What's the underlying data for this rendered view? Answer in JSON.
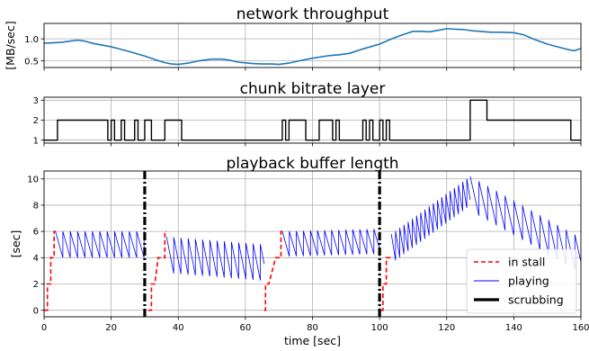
{
  "chart_data": [
    {
      "type": "line",
      "title": "network throughput",
      "xlabel": "",
      "ylabel": "[MB/sec]",
      "xlim": [
        0,
        160
      ],
      "ylim": [
        0.35,
        1.35
      ],
      "yticks": [
        0.5,
        1.0
      ],
      "ytick_labels": [
        "0.5",
        "1.0"
      ],
      "grid": true,
      "series": [
        {
          "color": "#1f77b4",
          "x": [
            0,
            5,
            8,
            10,
            12,
            15,
            20,
            25,
            30,
            33,
            36,
            38,
            40,
            43,
            46,
            50,
            53,
            55,
            58,
            62,
            65,
            68,
            70,
            73,
            76,
            80,
            85,
            88,
            91,
            95,
            100,
            103,
            106,
            108,
            110,
            112,
            115,
            118,
            120,
            122,
            125,
            128,
            130,
            133,
            136,
            140,
            143,
            146,
            150,
            153,
            156,
            158,
            160
          ],
          "y": [
            0.9,
            0.92,
            0.95,
            0.97,
            0.95,
            0.89,
            0.82,
            0.72,
            0.61,
            0.53,
            0.46,
            0.43,
            0.42,
            0.45,
            0.5,
            0.54,
            0.54,
            0.52,
            0.47,
            0.44,
            0.43,
            0.43,
            0.42,
            0.45,
            0.5,
            0.56,
            0.62,
            0.64,
            0.67,
            0.77,
            0.88,
            0.98,
            1.07,
            1.12,
            1.17,
            1.17,
            1.16,
            1.2,
            1.23,
            1.22,
            1.21,
            1.18,
            1.17,
            1.15,
            1.15,
            1.14,
            1.09,
            0.99,
            0.88,
            0.82,
            0.76,
            0.73,
            0.78
          ]
        }
      ]
    },
    {
      "type": "line",
      "title": "chunk bitrate layer",
      "xlabel": "",
      "ylabel": "",
      "xlim": [
        0,
        160
      ],
      "ylim": [
        0.85,
        3.15
      ],
      "yticks": [
        1,
        2,
        3
      ],
      "ytick_labels": [
        "1",
        "2",
        "3"
      ],
      "grid": true,
      "series": [
        {
          "color": "#000000",
          "step": "post",
          "x": [
            0,
            4,
            19,
            20,
            21,
            23,
            24,
            27,
            28,
            30,
            32,
            36,
            41,
            71,
            72,
            73,
            78,
            82,
            86,
            87,
            88,
            95,
            96,
            97,
            98,
            100,
            101,
            102,
            103,
            127,
            132,
            157,
            160
          ],
          "y": [
            1,
            2,
            1,
            2,
            1,
            2,
            1,
            2,
            1,
            2,
            1,
            2,
            1,
            2,
            1,
            2,
            1,
            2,
            1,
            2,
            1,
            2,
            1,
            2,
            1,
            2,
            1,
            2,
            1,
            3,
            2,
            1,
            1
          ]
        }
      ]
    },
    {
      "type": "line",
      "title": "playback buffer length",
      "xlabel": "time [sec]",
      "ylabel": "[sec]",
      "xlim": [
        0,
        160
      ],
      "ylim": [
        -0.5,
        10.6
      ],
      "xticks": [
        0,
        20,
        40,
        60,
        80,
        100,
        120,
        140,
        160
      ],
      "xtick_labels": [
        "0",
        "20",
        "40",
        "60",
        "80",
        "100",
        "120",
        "140",
        "160"
      ],
      "yticks": [
        0,
        2,
        4,
        6,
        8,
        10
      ],
      "ytick_labels": [
        "0",
        "2",
        "4",
        "6",
        "8",
        "10"
      ],
      "grid": true,
      "legend": "lower-right",
      "series": [
        {
          "name": "in stall",
          "color": "#ff0000",
          "style": "dashed",
          "segments": [
            {
              "x": [
                0,
                1,
                1,
                2,
                2,
                3,
                3,
                3.4
              ],
              "y": [
                0,
                0,
                2,
                2,
                4,
                4,
                6,
                6
              ]
            },
            {
              "x": [
                31,
                32,
                32,
                33,
                33,
                34,
                34,
                36,
                36,
                36.5
              ],
              "y": [
                0,
                0,
                2,
                2,
                2,
                4,
                4,
                4,
                6,
                6
              ]
            },
            {
              "x": [
                65.6,
                66,
                66,
                67,
                67,
                69,
                69,
                70.6,
                70.6,
                71
              ],
              "y": [
                0,
                0,
                2,
                2,
                2,
                4,
                4,
                4,
                6,
                6
              ]
            },
            {
              "x": [
                100.4,
                101,
                101,
                102,
                102,
                103,
                103,
                103.5
              ],
              "y": [
                0,
                0,
                2,
                2,
                4,
                4,
                4,
                4
              ]
            }
          ]
        },
        {
          "name": "playing",
          "color": "#0000ff",
          "style": "solid",
          "sawtooth": [
            {
              "t0": 3.4,
              "t1": 30,
              "b0": 6.0,
              "b1": 6.0,
              "drop": 2.0,
              "period": 2.2
            },
            {
              "t0": 36.5,
              "t1": 65.6,
              "b0": 5.6,
              "b1": 5.0,
              "drop": 2.8,
              "period": 2.15
            },
            {
              "t0": 71,
              "t1": 100,
              "b0": 6.0,
              "b1": 6.2,
              "drop": 1.9,
              "period": 2.1
            },
            {
              "t0": 103.5,
              "t1": 127,
              "b0": 5.8,
              "b1": 10.2,
              "drop": 2.0,
              "period": 1.25
            },
            {
              "t0": 127,
              "t1": 160,
              "b0": 10.2,
              "b1": 5.5,
              "drop": 3.0,
              "period": 2.6
            }
          ]
        },
        {
          "name": "scrubbing",
          "color": "#000000",
          "style": "dashdot",
          "vlines": [
            30,
            100
          ],
          "ymin": -0.5,
          "ymax": 10.6
        }
      ]
    }
  ]
}
